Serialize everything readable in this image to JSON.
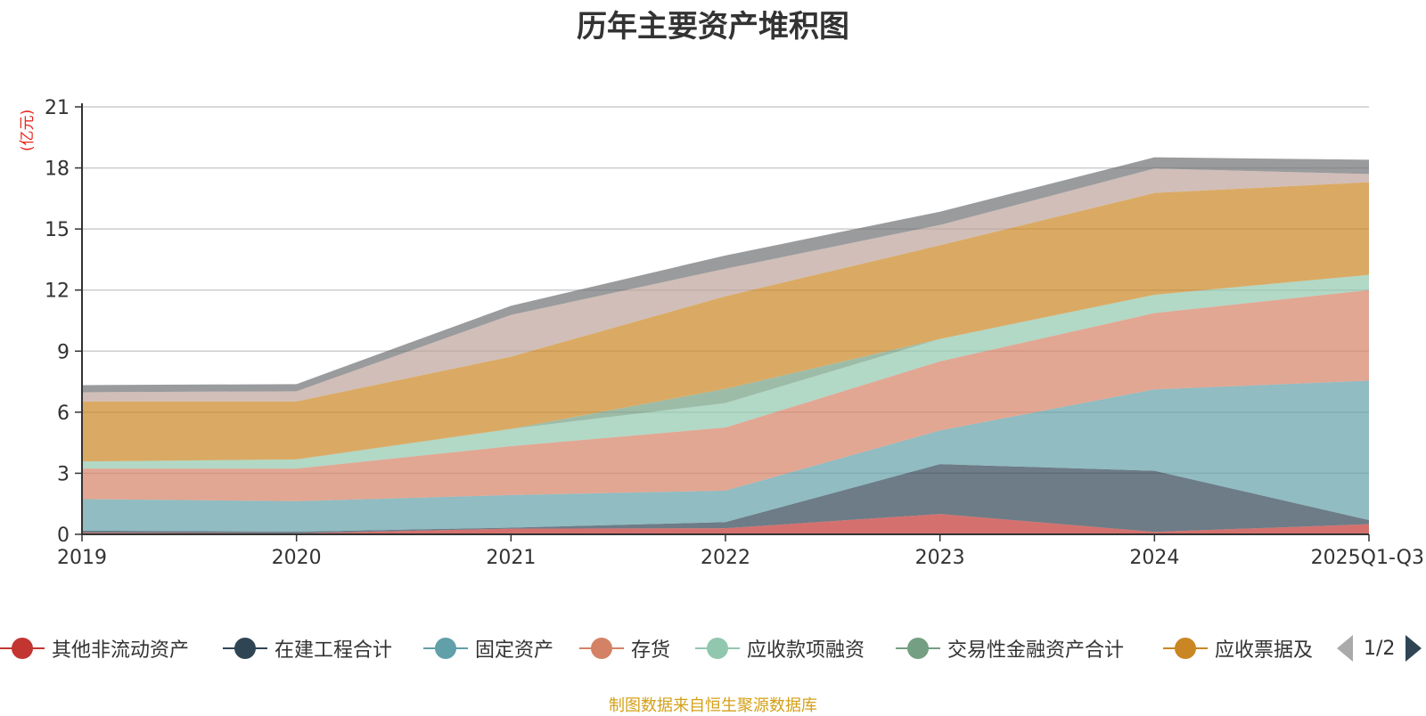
{
  "title": "历年主要资产堆积图",
  "unit_label": "(亿元)",
  "source_note": "制图数据来自恒生聚源数据库",
  "legend_page": "1/2",
  "chart_data": {
    "type": "area",
    "stacked": true,
    "title": "历年主要资产堆积图",
    "ylabel": "(亿元)",
    "ylim": [
      0,
      21
    ],
    "yticks": [
      0,
      3,
      6,
      9,
      12,
      15,
      18,
      21
    ],
    "grid": true,
    "legend_position": "bottom",
    "categories": [
      "2019",
      "2020",
      "2021",
      "2022",
      "2023",
      "2024",
      "2025Q1-Q3"
    ],
    "series": [
      {
        "name": "其他非流动资产",
        "color": "#c23531",
        "legend": true,
        "values": [
          0.08,
          0.05,
          0.28,
          0.3,
          1.0,
          0.12,
          0.5
        ]
      },
      {
        "name": "在建工程合计",
        "color": "#2f4554",
        "legend": true,
        "values": [
          0.1,
          0.08,
          0.05,
          0.3,
          2.45,
          3.0,
          0.2
        ]
      },
      {
        "name": "固定资产",
        "color": "#61a0a8",
        "legend": true,
        "values": [
          1.55,
          1.5,
          1.6,
          1.55,
          1.65,
          4.0,
          6.85
        ]
      },
      {
        "name": "存货",
        "color": "#d48265",
        "legend": true,
        "values": [
          1.5,
          1.6,
          2.4,
          3.1,
          3.4,
          3.75,
          4.45
        ]
      },
      {
        "name": "应收款项融资",
        "color": "#91c7ae",
        "legend": true,
        "values": [
          0.35,
          0.45,
          0.85,
          1.2,
          1.1,
          0.9,
          0.75
        ]
      },
      {
        "name": "交易性金融资产合计",
        "color": "#749f83",
        "legend": true,
        "values": [
          0.0,
          0.0,
          0.0,
          0.7,
          0.0,
          0.0,
          0.0
        ]
      },
      {
        "name": "应收票据及",
        "color": "#ca8622",
        "legend": true,
        "values": [
          2.95,
          2.85,
          3.55,
          4.55,
          4.6,
          5.0,
          4.55
        ]
      },
      {
        "name": "series-8",
        "color": "#bda29a",
        "legend": false,
        "values": [
          0.45,
          0.5,
          2.05,
          1.35,
          1.0,
          1.2,
          0.4
        ]
      },
      {
        "name": "series-9",
        "color": "#6e7074",
        "legend": false,
        "values": [
          0.35,
          0.35,
          0.45,
          0.65,
          0.65,
          0.55,
          0.7
        ]
      }
    ]
  }
}
